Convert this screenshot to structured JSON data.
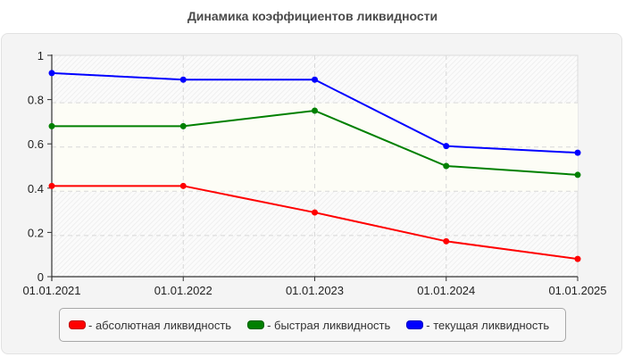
{
  "title": "Динамика коэффициентов ликвидности",
  "colors": {
    "absolute": "#ff0000",
    "quick": "#008000",
    "current": "#0000ff",
    "panel_bg": "#f4f4f4",
    "grid": "#d8d8d8"
  },
  "legend": {
    "items": [
      {
        "label": "- абсолютная ликвидность",
        "color": "#ff0000"
      },
      {
        "label": "- быстрая ликвидность",
        "color": "#008000"
      },
      {
        "label": "- текущая ликвидность",
        "color": "#0000ff"
      }
    ]
  },
  "chart_data": {
    "type": "line",
    "title": "Динамика коэффициентов ликвидности",
    "xlabel": "",
    "ylabel": "",
    "categories": [
      "01.01.2021",
      "01.01.2022",
      "01.01.2023",
      "01.01.2024",
      "01.01.2025"
    ],
    "yticks": [
      "0",
      "0.2",
      "0.4",
      "0.6",
      "0.8",
      "1"
    ],
    "ylim": [
      0,
      1
    ],
    "grid": true,
    "legend_position": "bottom",
    "series": [
      {
        "name": "абсолютная ликвидность",
        "color": "#ff0000",
        "values": [
          0.41,
          0.41,
          0.29,
          0.16,
          0.08
        ]
      },
      {
        "name": "быстрая ликвидность",
        "color": "#008000",
        "values": [
          0.68,
          0.68,
          0.75,
          0.5,
          0.46
        ]
      },
      {
        "name": "текущая ликвидность",
        "color": "#0000ff",
        "values": [
          0.92,
          0.89,
          0.89,
          0.59,
          0.56
        ]
      }
    ]
  }
}
